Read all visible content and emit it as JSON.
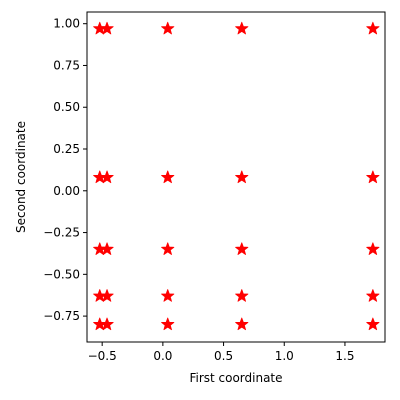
{
  "chart_data": {
    "type": "scatter",
    "title": "",
    "xlabel": "First coordinate",
    "ylabel": "Second coordinate",
    "xlim": [
      -0.625,
      1.83
    ],
    "ylim": [
      -0.905,
      1.07
    ],
    "grid": false,
    "marker": "star",
    "marker_color": "#ff0000",
    "x_ticks": [
      {
        "value": -0.5,
        "label": "−0.5"
      },
      {
        "value": 0.0,
        "label": "0.0"
      },
      {
        "value": 0.5,
        "label": "0.5"
      },
      {
        "value": 1.0,
        "label": "1.0"
      },
      {
        "value": 1.5,
        "label": "1.5"
      }
    ],
    "y_ticks": [
      {
        "value": -0.75,
        "label": "−0.75"
      },
      {
        "value": -0.5,
        "label": "−0.50"
      },
      {
        "value": -0.25,
        "label": "−0.25"
      },
      {
        "value": 0.0,
        "label": "0.00"
      },
      {
        "value": 0.25,
        "label": "0.25"
      },
      {
        "value": 0.5,
        "label": "0.50"
      },
      {
        "value": 0.75,
        "label": "0.75"
      },
      {
        "value": 1.0,
        "label": "1.00"
      }
    ],
    "x_values": [
      -0.52,
      -0.46,
      0.04,
      0.65,
      1.73
    ],
    "y_values": [
      0.97,
      0.08,
      -0.35,
      -0.63,
      -0.8
    ],
    "points": [
      {
        "x": -0.52,
        "y": 0.97
      },
      {
        "x": -0.46,
        "y": 0.97
      },
      {
        "x": 0.04,
        "y": 0.97
      },
      {
        "x": 0.65,
        "y": 0.97
      },
      {
        "x": 1.73,
        "y": 0.97
      },
      {
        "x": -0.52,
        "y": 0.08
      },
      {
        "x": -0.46,
        "y": 0.08
      },
      {
        "x": 0.04,
        "y": 0.08
      },
      {
        "x": 0.65,
        "y": 0.08
      },
      {
        "x": 1.73,
        "y": 0.08
      },
      {
        "x": -0.52,
        "y": -0.35
      },
      {
        "x": -0.46,
        "y": -0.35
      },
      {
        "x": 0.04,
        "y": -0.35
      },
      {
        "x": 0.65,
        "y": -0.35
      },
      {
        "x": 1.73,
        "y": -0.35
      },
      {
        "x": -0.52,
        "y": -0.63
      },
      {
        "x": -0.46,
        "y": -0.63
      },
      {
        "x": 0.04,
        "y": -0.63
      },
      {
        "x": 0.65,
        "y": -0.63
      },
      {
        "x": 1.73,
        "y": -0.63
      },
      {
        "x": -0.52,
        "y": -0.8
      },
      {
        "x": -0.46,
        "y": -0.8
      },
      {
        "x": 0.04,
        "y": -0.8
      },
      {
        "x": 0.65,
        "y": -0.8
      },
      {
        "x": 1.73,
        "y": -0.8
      }
    ]
  }
}
